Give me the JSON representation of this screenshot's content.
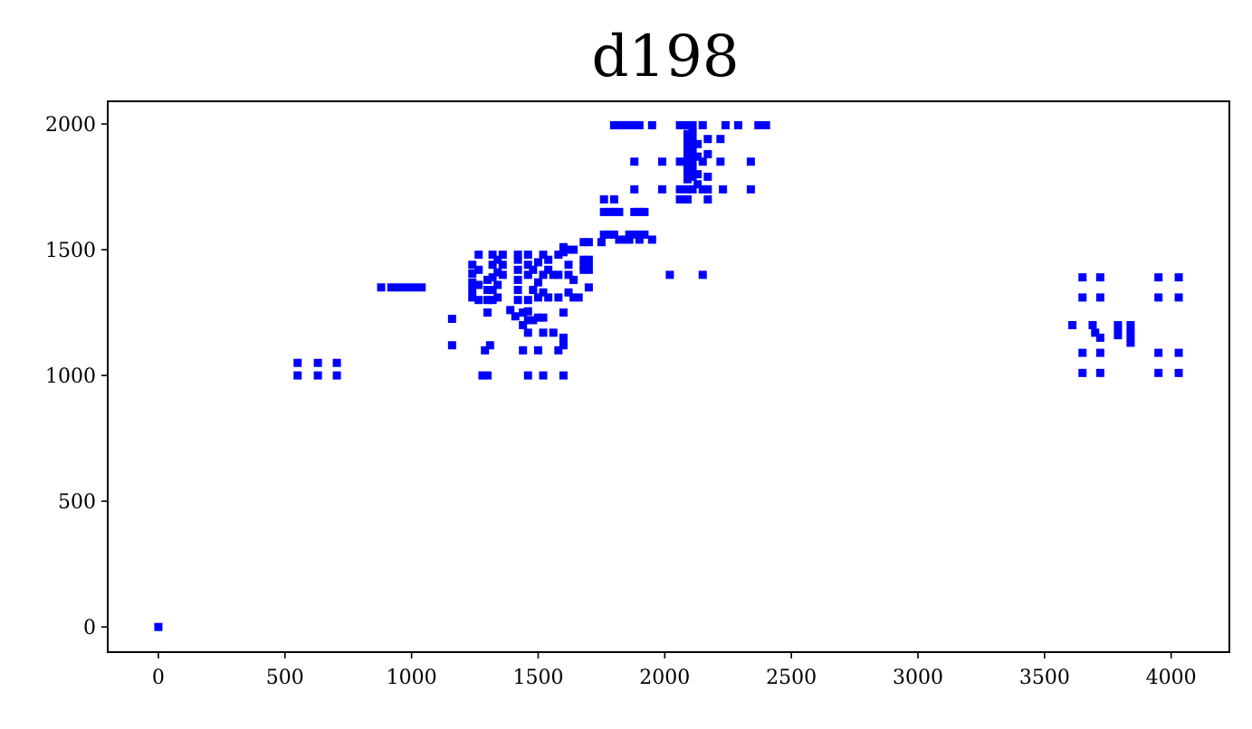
{
  "chart_data": {
    "type": "scatter",
    "title": "d198",
    "xlabel": "",
    "ylabel": "",
    "xlim": [
      -200,
      4230
    ],
    "ylim": [
      -100,
      2090
    ],
    "xticks": [
      0,
      500,
      1000,
      1500,
      2000,
      2500,
      3000,
      3500,
      4000
    ],
    "yticks": [
      0,
      500,
      1000,
      1500,
      2000
    ],
    "grid": false,
    "marker": "square",
    "color": "#0000ff",
    "points": [
      [
        0,
        0
      ],
      [
        550,
        1000
      ],
      [
        630,
        1000
      ],
      [
        705,
        1000
      ],
      [
        550,
        1050
      ],
      [
        630,
        1050
      ],
      [
        705,
        1050
      ],
      [
        880,
        1350
      ],
      [
        920,
        1350
      ],
      [
        950,
        1350
      ],
      [
        980,
        1350
      ],
      [
        1010,
        1350
      ],
      [
        1040,
        1350
      ],
      [
        1160,
        1120
      ],
      [
        1160,
        1225
      ],
      [
        1240,
        1310
      ],
      [
        1240,
        1340
      ],
      [
        1240,
        1370
      ],
      [
        1240,
        1405
      ],
      [
        1240,
        1440
      ],
      [
        1265,
        1300
      ],
      [
        1265,
        1360
      ],
      [
        1265,
        1420
      ],
      [
        1265,
        1480
      ],
      [
        1280,
        1000
      ],
      [
        1300,
        1000
      ],
      [
        1290,
        1100
      ],
      [
        1310,
        1120
      ],
      [
        1300,
        1250
      ],
      [
        1300,
        1300
      ],
      [
        1300,
        1340
      ],
      [
        1300,
        1380
      ],
      [
        1320,
        1300
      ],
      [
        1320,
        1340
      ],
      [
        1320,
        1390
      ],
      [
        1320,
        1440
      ],
      [
        1320,
        1480
      ],
      [
        1340,
        1310
      ],
      [
        1340,
        1360
      ],
      [
        1340,
        1410
      ],
      [
        1340,
        1460
      ],
      [
        1360,
        1400
      ],
      [
        1360,
        1440
      ],
      [
        1360,
        1480
      ],
      [
        1390,
        1260
      ],
      [
        1410,
        1235
      ],
      [
        1420,
        1300
      ],
      [
        1420,
        1340
      ],
      [
        1420,
        1380
      ],
      [
        1420,
        1420
      ],
      [
        1420,
        1460
      ],
      [
        1420,
        1480
      ],
      [
        1440,
        1200
      ],
      [
        1440,
        1250
      ],
      [
        1440,
        1100
      ],
      [
        1460,
        1000
      ],
      [
        1460,
        1170
      ],
      [
        1460,
        1220
      ],
      [
        1460,
        1255
      ],
      [
        1460,
        1300
      ],
      [
        1460,
        1400
      ],
      [
        1460,
        1440
      ],
      [
        1460,
        1480
      ],
      [
        1480,
        1220
      ],
      [
        1480,
        1340
      ],
      [
        1480,
        1420
      ],
      [
        1500,
        1100
      ],
      [
        1500,
        1230
      ],
      [
        1500,
        1310
      ],
      [
        1500,
        1370
      ],
      [
        1500,
        1450
      ],
      [
        1520,
        1000
      ],
      [
        1520,
        1230
      ],
      [
        1520,
        1170
      ],
      [
        1520,
        1330
      ],
      [
        1520,
        1400
      ],
      [
        1520,
        1480
      ],
      [
        1540,
        1310
      ],
      [
        1540,
        1420
      ],
      [
        1540,
        1460
      ],
      [
        1560,
        1170
      ],
      [
        1560,
        1400
      ],
      [
        1580,
        1100
      ],
      [
        1580,
        1310
      ],
      [
        1580,
        1400
      ],
      [
        1580,
        1480
      ],
      [
        1600,
        1000
      ],
      [
        1600,
        1120
      ],
      [
        1600,
        1150
      ],
      [
        1600,
        1250
      ],
      [
        1600,
        1490
      ],
      [
        1600,
        1510
      ],
      [
        1620,
        1330
      ],
      [
        1620,
        1400
      ],
      [
        1620,
        1440
      ],
      [
        1620,
        1500
      ],
      [
        1640,
        1310
      ],
      [
        1640,
        1380
      ],
      [
        1640,
        1500
      ],
      [
        1660,
        1310
      ],
      [
        1680,
        1420
      ],
      [
        1680,
        1440
      ],
      [
        1680,
        1460
      ],
      [
        1680,
        1530
      ],
      [
        1700,
        1350
      ],
      [
        1700,
        1420
      ],
      [
        1700,
        1440
      ],
      [
        1700,
        1460
      ],
      [
        1700,
        1530
      ],
      [
        1750,
        1530
      ],
      [
        1760,
        1560
      ],
      [
        1760,
        1650
      ],
      [
        1760,
        1700
      ],
      [
        1780,
        1560
      ],
      [
        1780,
        1650
      ],
      [
        1800,
        1560
      ],
      [
        1800,
        1650
      ],
      [
        1800,
        1700
      ],
      [
        1800,
        1995
      ],
      [
        1820,
        1540
      ],
      [
        1820,
        1650
      ],
      [
        1820,
        1995
      ],
      [
        1840,
        1540
      ],
      [
        1840,
        1995
      ],
      [
        1860,
        1540
      ],
      [
        1860,
        1560
      ],
      [
        1860,
        1995
      ],
      [
        1880,
        1560
      ],
      [
        1880,
        1650
      ],
      [
        1880,
        1740
      ],
      [
        1880,
        1850
      ],
      [
        1880,
        1995
      ],
      [
        1900,
        1540
      ],
      [
        1900,
        1560
      ],
      [
        1900,
        1650
      ],
      [
        1900,
        1995
      ],
      [
        1920,
        1560
      ],
      [
        1920,
        1650
      ],
      [
        1950,
        1540
      ],
      [
        1950,
        1995
      ],
      [
        1990,
        1740
      ],
      [
        1990,
        1850
      ],
      [
        2020,
        1400
      ],
      [
        2060,
        1700
      ],
      [
        2060,
        1740
      ],
      [
        2060,
        1850
      ],
      [
        2060,
        1995
      ],
      [
        2090,
        1700
      ],
      [
        2090,
        1740
      ],
      [
        2090,
        1780
      ],
      [
        2090,
        1810
      ],
      [
        2090,
        1840
      ],
      [
        2090,
        1870
      ],
      [
        2090,
        1900
      ],
      [
        2090,
        1930
      ],
      [
        2090,
        1960
      ],
      [
        2090,
        1995
      ],
      [
        2110,
        1740
      ],
      [
        2110,
        1790
      ],
      [
        2110,
        1820
      ],
      [
        2110,
        1850
      ],
      [
        2110,
        1880
      ],
      [
        2110,
        1910
      ],
      [
        2110,
        1940
      ],
      [
        2110,
        1970
      ],
      [
        2110,
        1995
      ],
      [
        2130,
        1760
      ],
      [
        2130,
        1800
      ],
      [
        2130,
        1870
      ],
      [
        2130,
        1920
      ],
      [
        2150,
        1400
      ],
      [
        2150,
        1740
      ],
      [
        2150,
        1850
      ],
      [
        2150,
        1995
      ],
      [
        2170,
        1700
      ],
      [
        2170,
        1740
      ],
      [
        2170,
        1790
      ],
      [
        2170,
        1880
      ],
      [
        2170,
        1940
      ],
      [
        2220,
        1850
      ],
      [
        2220,
        1940
      ],
      [
        2230,
        1740
      ],
      [
        2240,
        1995
      ],
      [
        2290,
        1995
      ],
      [
        2340,
        1740
      ],
      [
        2340,
        1850
      ],
      [
        2370,
        1995
      ],
      [
        2400,
        1995
      ],
      [
        3610,
        1200
      ],
      [
        3650,
        1010
      ],
      [
        3650,
        1090
      ],
      [
        3650,
        1310
      ],
      [
        3650,
        1390
      ],
      [
        3690,
        1200
      ],
      [
        3700,
        1170
      ],
      [
        3720,
        1010
      ],
      [
        3720,
        1090
      ],
      [
        3720,
        1150
      ],
      [
        3720,
        1310
      ],
      [
        3720,
        1390
      ],
      [
        3790,
        1160
      ],
      [
        3790,
        1180
      ],
      [
        3790,
        1200
      ],
      [
        3840,
        1130
      ],
      [
        3840,
        1150
      ],
      [
        3840,
        1170
      ],
      [
        3840,
        1200
      ],
      [
        3950,
        1010
      ],
      [
        3950,
        1090
      ],
      [
        3950,
        1310
      ],
      [
        3950,
        1390
      ],
      [
        4030,
        1010
      ],
      [
        4030,
        1090
      ],
      [
        4030,
        1310
      ],
      [
        4030,
        1390
      ]
    ]
  }
}
